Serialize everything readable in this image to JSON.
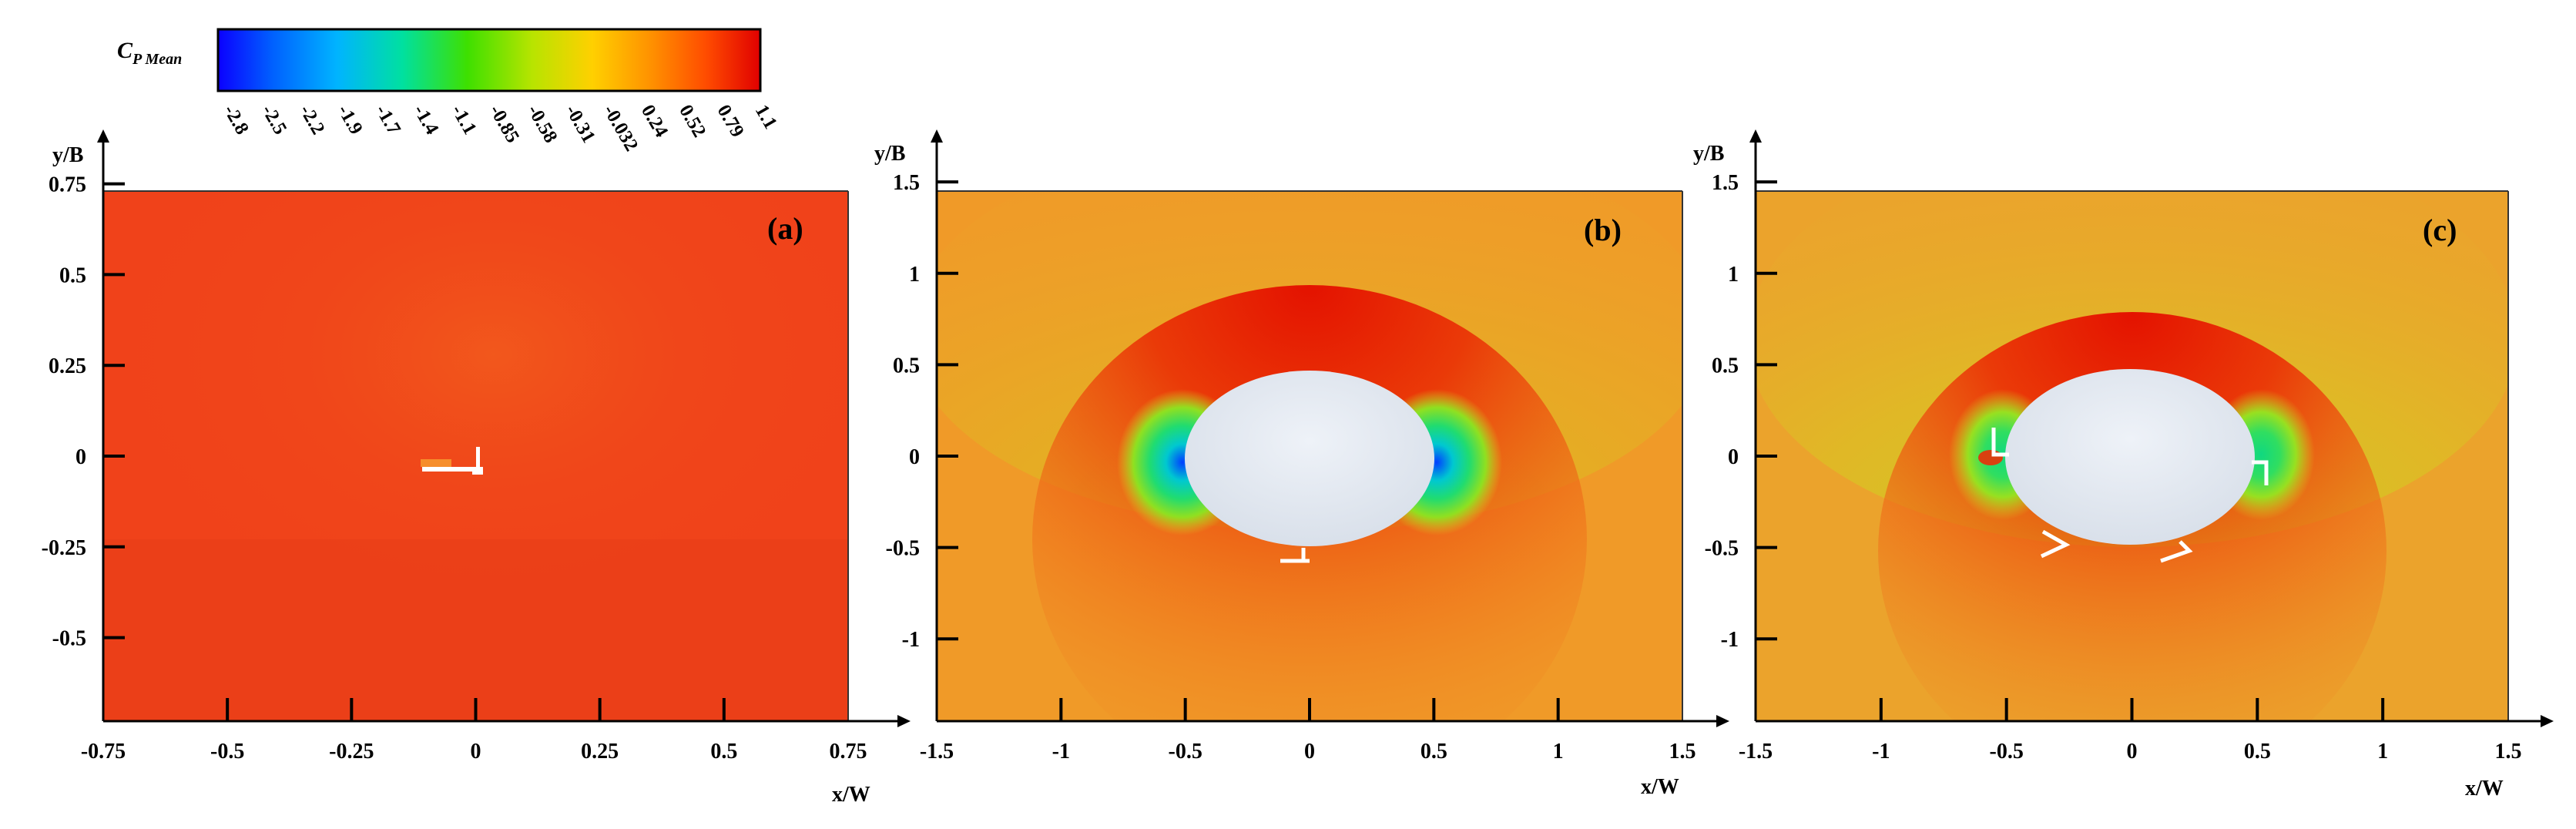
{
  "colorbar": {
    "title": "C",
    "title_sub": "P Mean",
    "ticks": [
      "-2.8",
      "-2.5",
      "-2.2",
      "-1.9",
      "-1.7",
      "-1.4",
      "-1.1",
      "-0.85",
      "-0.58",
      "-0.31",
      "-0.032",
      "0.24",
      "0.52",
      "0.79",
      "1.1"
    ],
    "colormap": [
      "#0b00ff",
      "#0060ff",
      "#00b4ff",
      "#00e0a0",
      "#3ee000",
      "#b8e400",
      "#ffd000",
      "#ff9000",
      "#ff4c00",
      "#e00000"
    ]
  },
  "chart_data": [
    {
      "type": "heatmap",
      "panel_label": "(a)",
      "xlabel": "x/W",
      "ylabel": "y/B",
      "xlim": [
        -0.75,
        0.75
      ],
      "ylim": [
        -0.73,
        0.73
      ],
      "xticks": [
        "-0.75",
        "-0.5",
        "-0.25",
        "0",
        "0.25",
        "0.5",
        "0.75"
      ],
      "yticks": [
        "0.75",
        "0.5",
        "0.25",
        "0",
        "-0.25",
        "-0.5"
      ],
      "field": "C_P Mean",
      "background_color": "#f0421a",
      "obstacle": "none"
    },
    {
      "type": "heatmap",
      "panel_label": "(b)",
      "xlabel": "x/W",
      "ylabel": "y/B",
      "xlim": [
        -1.5,
        1.5
      ],
      "ylim": [
        -1.45,
        1.45
      ],
      "xticks": [
        "-1.5",
        "-1",
        "-0.5",
        "0",
        "0.5",
        "1",
        "1.5"
      ],
      "yticks": [
        "1.5",
        "1",
        "0.5",
        "0",
        "-0.5",
        "-1"
      ],
      "field": "C_P Mean",
      "background_color": "#f09a28",
      "obstacle": "ellipse"
    },
    {
      "type": "heatmap",
      "panel_label": "(c)",
      "xlabel": "x/W",
      "ylabel": "y/B",
      "xlim": [
        -1.5,
        1.5
      ],
      "ylim": [
        -1.45,
        1.45
      ],
      "xticks": [
        "-1.5",
        "-1",
        "-0.5",
        "0",
        "0.5",
        "1",
        "1.5"
      ],
      "yticks": [
        "1.5",
        "1",
        "0.5",
        "0",
        "-0.5",
        "-1"
      ],
      "field": "C_P Mean",
      "background_color": "#eba32c",
      "obstacle": "ellipse"
    }
  ]
}
